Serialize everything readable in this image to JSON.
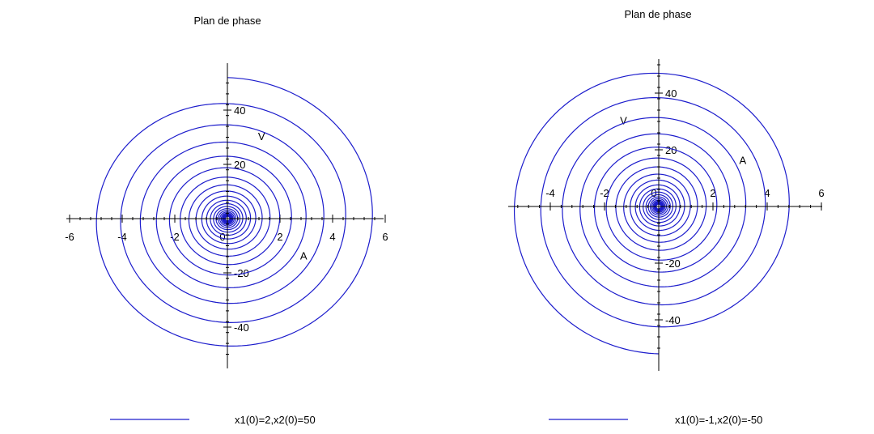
{
  "colors": {
    "curve": "#1c1ccc",
    "axis": "#000000",
    "background": "#ffffff"
  },
  "chart_data": [
    {
      "type": "line",
      "title": "Plan de phase",
      "xlabel": "",
      "ylabel": "",
      "xlim": [
        -6,
        6
      ],
      "ylim": [
        -50,
        50
      ],
      "x_ticks": [
        "-6",
        "-4",
        "-2",
        "0",
        "2",
        "4",
        "6"
      ],
      "y_ticks": [
        "40",
        "20",
        "-20",
        "-40"
      ],
      "annotations": [
        {
          "text": "V",
          "x": 1.3,
          "y": 29
        },
        {
          "text": "A",
          "x": 2.9,
          "y": -15
        }
      ],
      "grid": false,
      "legend_position": "bottom",
      "series": [
        {
          "name": "x1(0)=2,x2(0)=50",
          "description_note": "",
          "initial_state": [
            2,
            50
          ],
          "turns": 21,
          "max_abs_x": 5.8,
          "max_abs_y": 52
        }
      ]
    },
    {
      "type": "line",
      "title": "Plan de phase",
      "xlabel": "",
      "ylabel": "",
      "xlim": [
        -6,
        6
      ],
      "ylim": [
        -50,
        50
      ],
      "x_ticks": [
        "-4",
        "-2",
        "0",
        "2",
        "4",
        "6"
      ],
      "y_ticks": [
        "40",
        "20",
        "-20",
        "-40"
      ],
      "annotations": [
        {
          "text": "V",
          "x": -1.3,
          "y": 29
        },
        {
          "text": "A",
          "x": 3.1,
          "y": 15
        }
      ],
      "grid": false,
      "legend_position": "bottom",
      "series": [
        {
          "name": "x1(0)=-1,x2(0)=-50",
          "initial_state": [
            -1,
            -50
          ],
          "turns": 21,
          "max_abs_x": 5.6,
          "max_abs_y": 52
        }
      ]
    }
  ]
}
